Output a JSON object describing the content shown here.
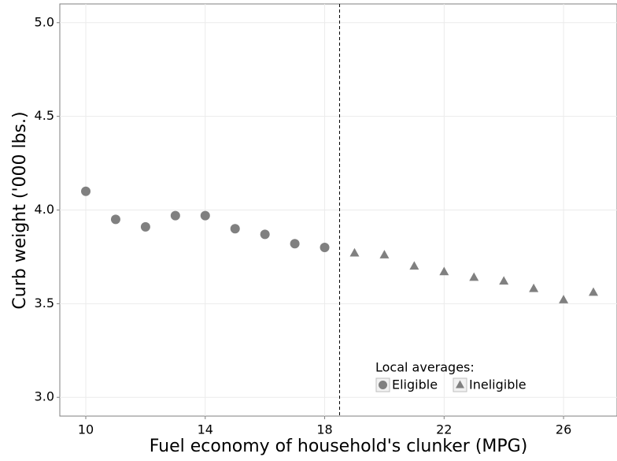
{
  "chart_data": {
    "type": "scatter",
    "xlabel": "Fuel economy of household's clunker (MPG)",
    "ylabel": "Curb weight ('000 lbs.)",
    "xlim": [
      9.13,
      27.79
    ],
    "ylim": [
      2.9,
      5.1
    ],
    "xticks": [
      10,
      14,
      18,
      22,
      26
    ],
    "yticks": [
      {
        "value": 3,
        "label": "3.0"
      },
      3.5,
      {
        "value": 4,
        "label": "4.0"
      },
      4.5,
      {
        "value": 5,
        "label": "5.0"
      }
    ],
    "grid": true,
    "vline": 18.5,
    "legend_title": "Local averages:",
    "series": [
      {
        "name": "Eligible",
        "marker": "circle",
        "color": "#808080",
        "x": [
          10,
          11,
          12,
          13,
          14,
          15,
          16,
          17,
          18
        ],
        "values": [
          4.1,
          3.95,
          3.91,
          3.97,
          3.97,
          3.9,
          3.87,
          3.82,
          3.8
        ]
      },
      {
        "name": "Ineligible",
        "marker": "triangle",
        "color": "#808080",
        "x": [
          19,
          20,
          21,
          22,
          23,
          24,
          25,
          26,
          27
        ],
        "values": [
          3.77,
          3.76,
          3.7,
          3.67,
          3.64,
          3.62,
          3.58,
          3.52,
          3.56
        ]
      }
    ]
  }
}
